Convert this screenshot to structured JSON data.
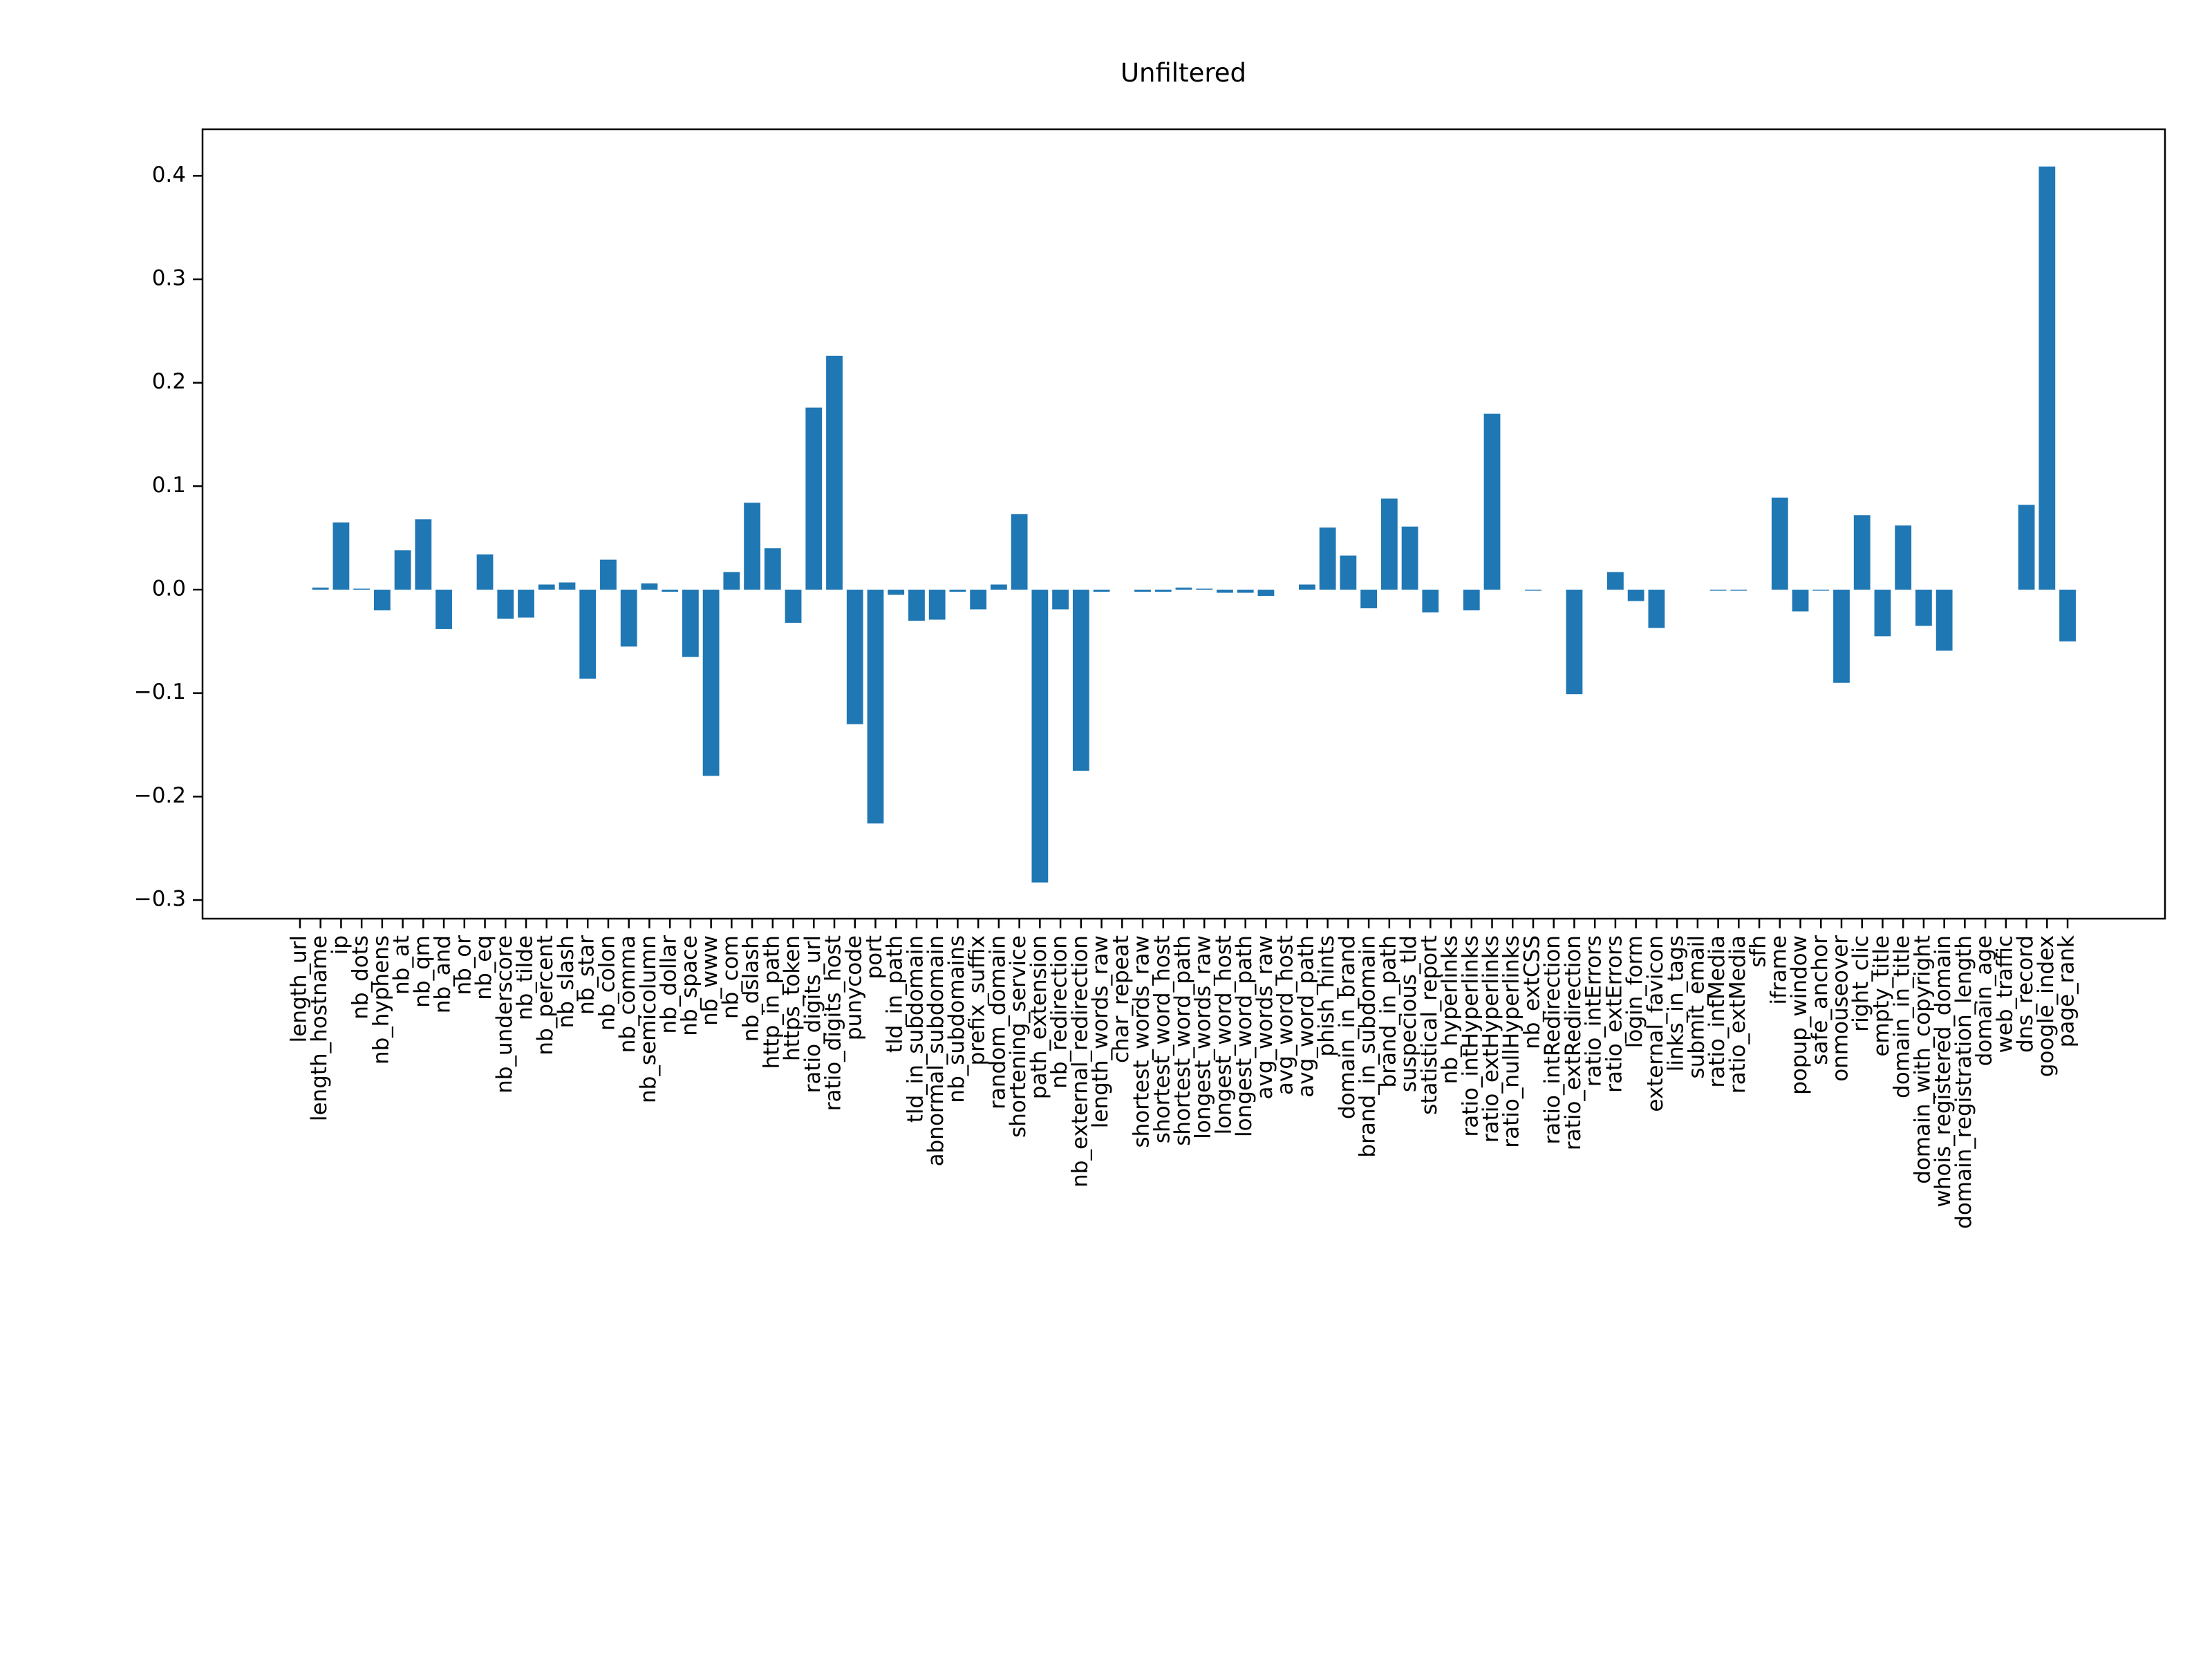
{
  "chart_data": {
    "type": "bar",
    "title": "Unfiltered",
    "color": "#1f77b4",
    "categories": [
      "length_url",
      "length_hostname",
      "ip",
      "nb_dots",
      "nb_hyphens",
      "nb_at",
      "nb_qm",
      "nb_and",
      "nb_or",
      "nb_eq",
      "nb_underscore",
      "nb_tilde",
      "nb_percent",
      "nb_slash",
      "nb_star",
      "nb_colon",
      "nb_comma",
      "nb_semicolumn",
      "nb_dollar",
      "nb_space",
      "nb_www",
      "nb_com",
      "nb_dslash",
      "http_in_path",
      "https_token",
      "ratio_digits_url",
      "ratio_digits_host",
      "punycode",
      "port",
      "tld_in_path",
      "tld_in_subdomain",
      "abnormal_subdomain",
      "nb_subdomains",
      "prefix_suffix",
      "random_domain",
      "shortening_service",
      "path_extension",
      "nb_redirection",
      "nb_external_redirection",
      "length_words_raw",
      "char_repeat",
      "shortest_words_raw",
      "shortest_word_host",
      "shortest_word_path",
      "longest_words_raw",
      "longest_word_host",
      "longest_word_path",
      "avg_words_raw",
      "avg_word_host",
      "avg_word_path",
      "phish_hints",
      "domain_in_brand",
      "brand_in_subdomain",
      "brand_in_path",
      "suspecious_tld",
      "statistical_report",
      "nb_hyperlinks",
      "ratio_intHyperlinks",
      "ratio_extHyperlinks",
      "ratio_nullHyperlinks",
      "nb_extCSS",
      "ratio_intRedirection",
      "ratio_extRedirection",
      "ratio_intErrors",
      "ratio_extErrors",
      "login_form",
      "external_favicon",
      "links_in_tags",
      "submit_email",
      "ratio_intMedia",
      "ratio_extMedia",
      "sfh",
      "iframe",
      "popup_window",
      "safe_anchor",
      "onmouseover",
      "right_clic",
      "empty_title",
      "domain_in_title",
      "domain_with_copyright",
      "whois_registered_domain",
      "domain_registration_length",
      "domain_age",
      "web_traffic",
      "dns_record",
      "google_index",
      "page_rank"
    ],
    "values": [
      0.0,
      0.002,
      0.065,
      0.001,
      -0.02,
      0.038,
      0.068,
      -0.038,
      0.0,
      0.034,
      -0.028,
      -0.027,
      0.005,
      0.007,
      -0.086,
      0.029,
      -0.055,
      0.006,
      -0.002,
      -0.065,
      -0.18,
      0.017,
      0.084,
      0.04,
      -0.032,
      0.176,
      0.226,
      -0.13,
      -0.226,
      -0.005,
      -0.03,
      -0.029,
      -0.002,
      -0.019,
      0.005,
      0.073,
      -0.283,
      -0.019,
      -0.175,
      -0.002,
      0.0,
      -0.002,
      -0.002,
      0.002,
      0.001,
      -0.003,
      -0.003,
      -0.006,
      0.0,
      0.005,
      0.06,
      0.033,
      -0.018,
      0.088,
      0.061,
      -0.022,
      0.0,
      -0.02,
      0.17,
      0.0,
      -0.001,
      0.0,
      -0.101,
      0.0,
      0.017,
      -0.011,
      -0.037,
      0.0,
      0.0,
      -0.001,
      -0.001,
      0.0,
      0.089,
      -0.021,
      -0.001,
      -0.09,
      0.072,
      -0.045,
      0.062,
      -0.035,
      -0.059,
      0.0,
      0.0,
      0.0,
      0.082,
      0.409,
      -0.05
    ],
    "ylim": [
      -0.318,
      0.445
    ],
    "yticks": [
      {
        "value": -0.3,
        "label": "−0.3"
      },
      {
        "value": -0.2,
        "label": "−0.2"
      },
      {
        "value": -0.1,
        "label": "−0.1"
      },
      {
        "value": 0.0,
        "label": "0.0"
      },
      0.1,
      0.2,
      0.3,
      0.4
    ],
    "grid": false
  }
}
